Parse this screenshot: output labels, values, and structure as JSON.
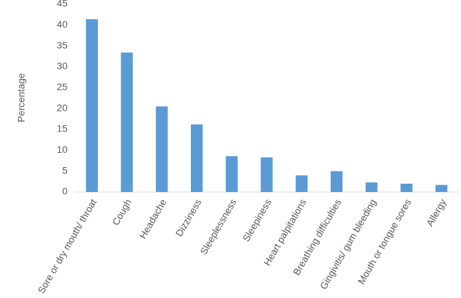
{
  "chart_data": {
    "type": "bar",
    "y_label": "Percentage",
    "categories": [
      "Sore or dry mouth/ throat",
      "Cough",
      "Headache",
      "Dizziness",
      "Sleeplessness",
      "Sleepiness",
      "Heart palpitations",
      "Breathing difficulties",
      "Gingivitis/ gum bleeding",
      "Mouth or tongue sores",
      "Allergy"
    ],
    "values": [
      41.4,
      33.4,
      20.5,
      16.2,
      8.6,
      8.3,
      4.0,
      5.0,
      2.3,
      2.0,
      1.7
    ],
    "color": "#5b9bd5",
    "ylim": [
      0,
      45
    ],
    "yticks": [
      0,
      5,
      10,
      15,
      20,
      25,
      30,
      35,
      40,
      45
    ],
    "grid": false
  }
}
